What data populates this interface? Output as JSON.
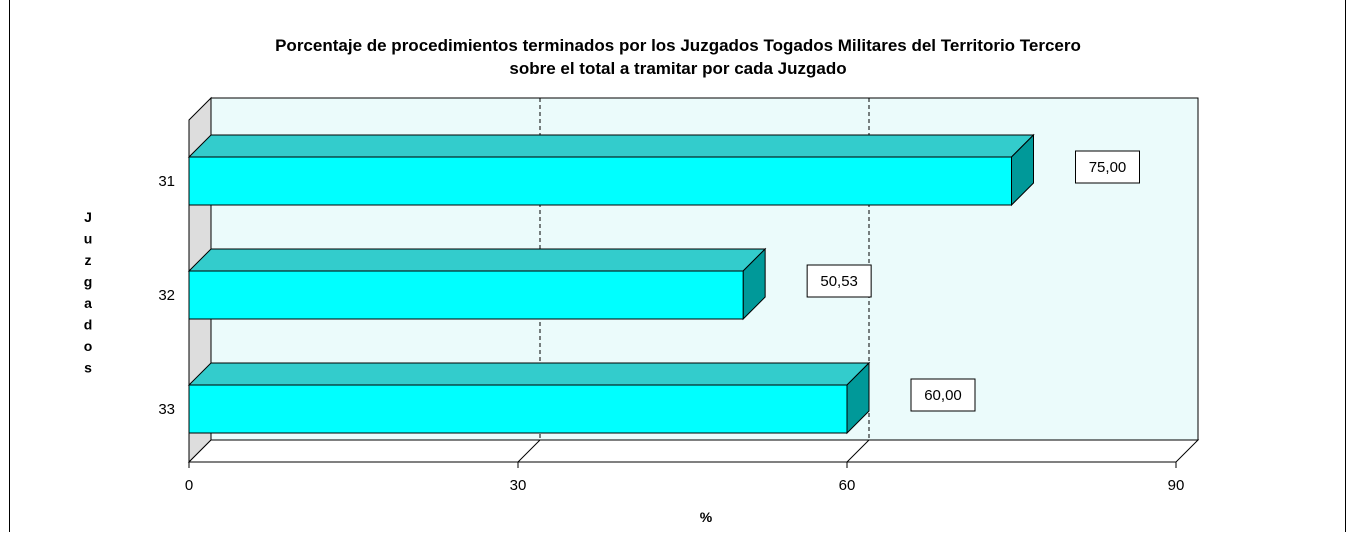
{
  "chart_data": {
    "type": "bar",
    "orientation": "horizontal",
    "title": "Porcentaje de procedimientos terminados por los Juzgados Togados Militares del Territorio Tercero",
    "subtitle": "sobre el total a tramitar por cada Juzgado",
    "categories": [
      "31",
      "32",
      "33"
    ],
    "values": [
      75.0,
      50.53,
      60.0
    ],
    "data_labels": [
      "75,00",
      "50,53",
      "60,00"
    ],
    "xlabel": "%",
    "ylabel": "Juzgados",
    "xlim": [
      0,
      90
    ],
    "xticks": [
      "0",
      "30",
      "60",
      "90"
    ],
    "grid": "vertical dashed at 30 and 60",
    "legend": "none",
    "colors": {
      "bar_front": "#00ffff",
      "bar_top": "#33cccc",
      "bar_side": "#009999",
      "plot_area": "#ebfbfb",
      "background": "#ffffff"
    }
  }
}
